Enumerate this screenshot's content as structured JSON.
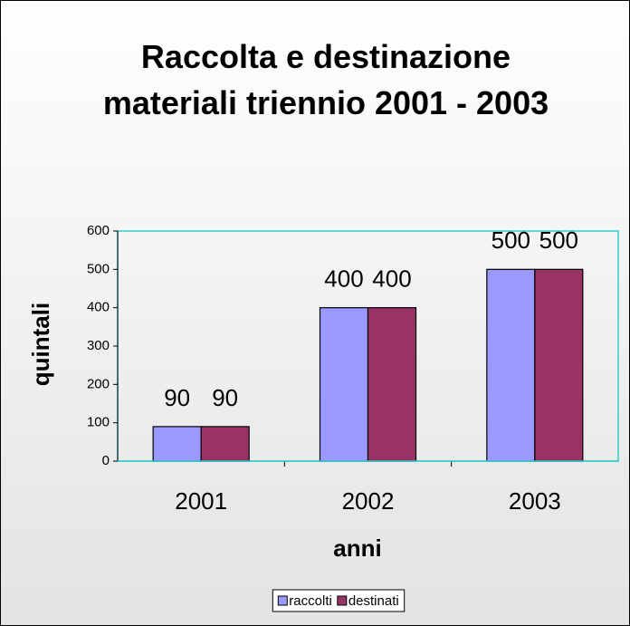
{
  "chart_data": {
    "type": "bar",
    "title": "Raccolta e destinazione materiali triennio 2001 - 2003",
    "x_label": "anni",
    "y_label": "quintali",
    "categories": [
      "2001",
      "2002",
      "2003"
    ],
    "series": [
      {
        "name": "raccolti",
        "color": "#9999ff",
        "values": [
          90,
          400,
          500
        ]
      },
      {
        "name": "destinati",
        "color": "#993366",
        "values": [
          90,
          400,
          500
        ]
      }
    ],
    "ylim": [
      0,
      600
    ],
    "yticks": [
      0,
      100,
      200,
      300,
      400,
      500,
      600
    ],
    "legend": "bottom"
  }
}
